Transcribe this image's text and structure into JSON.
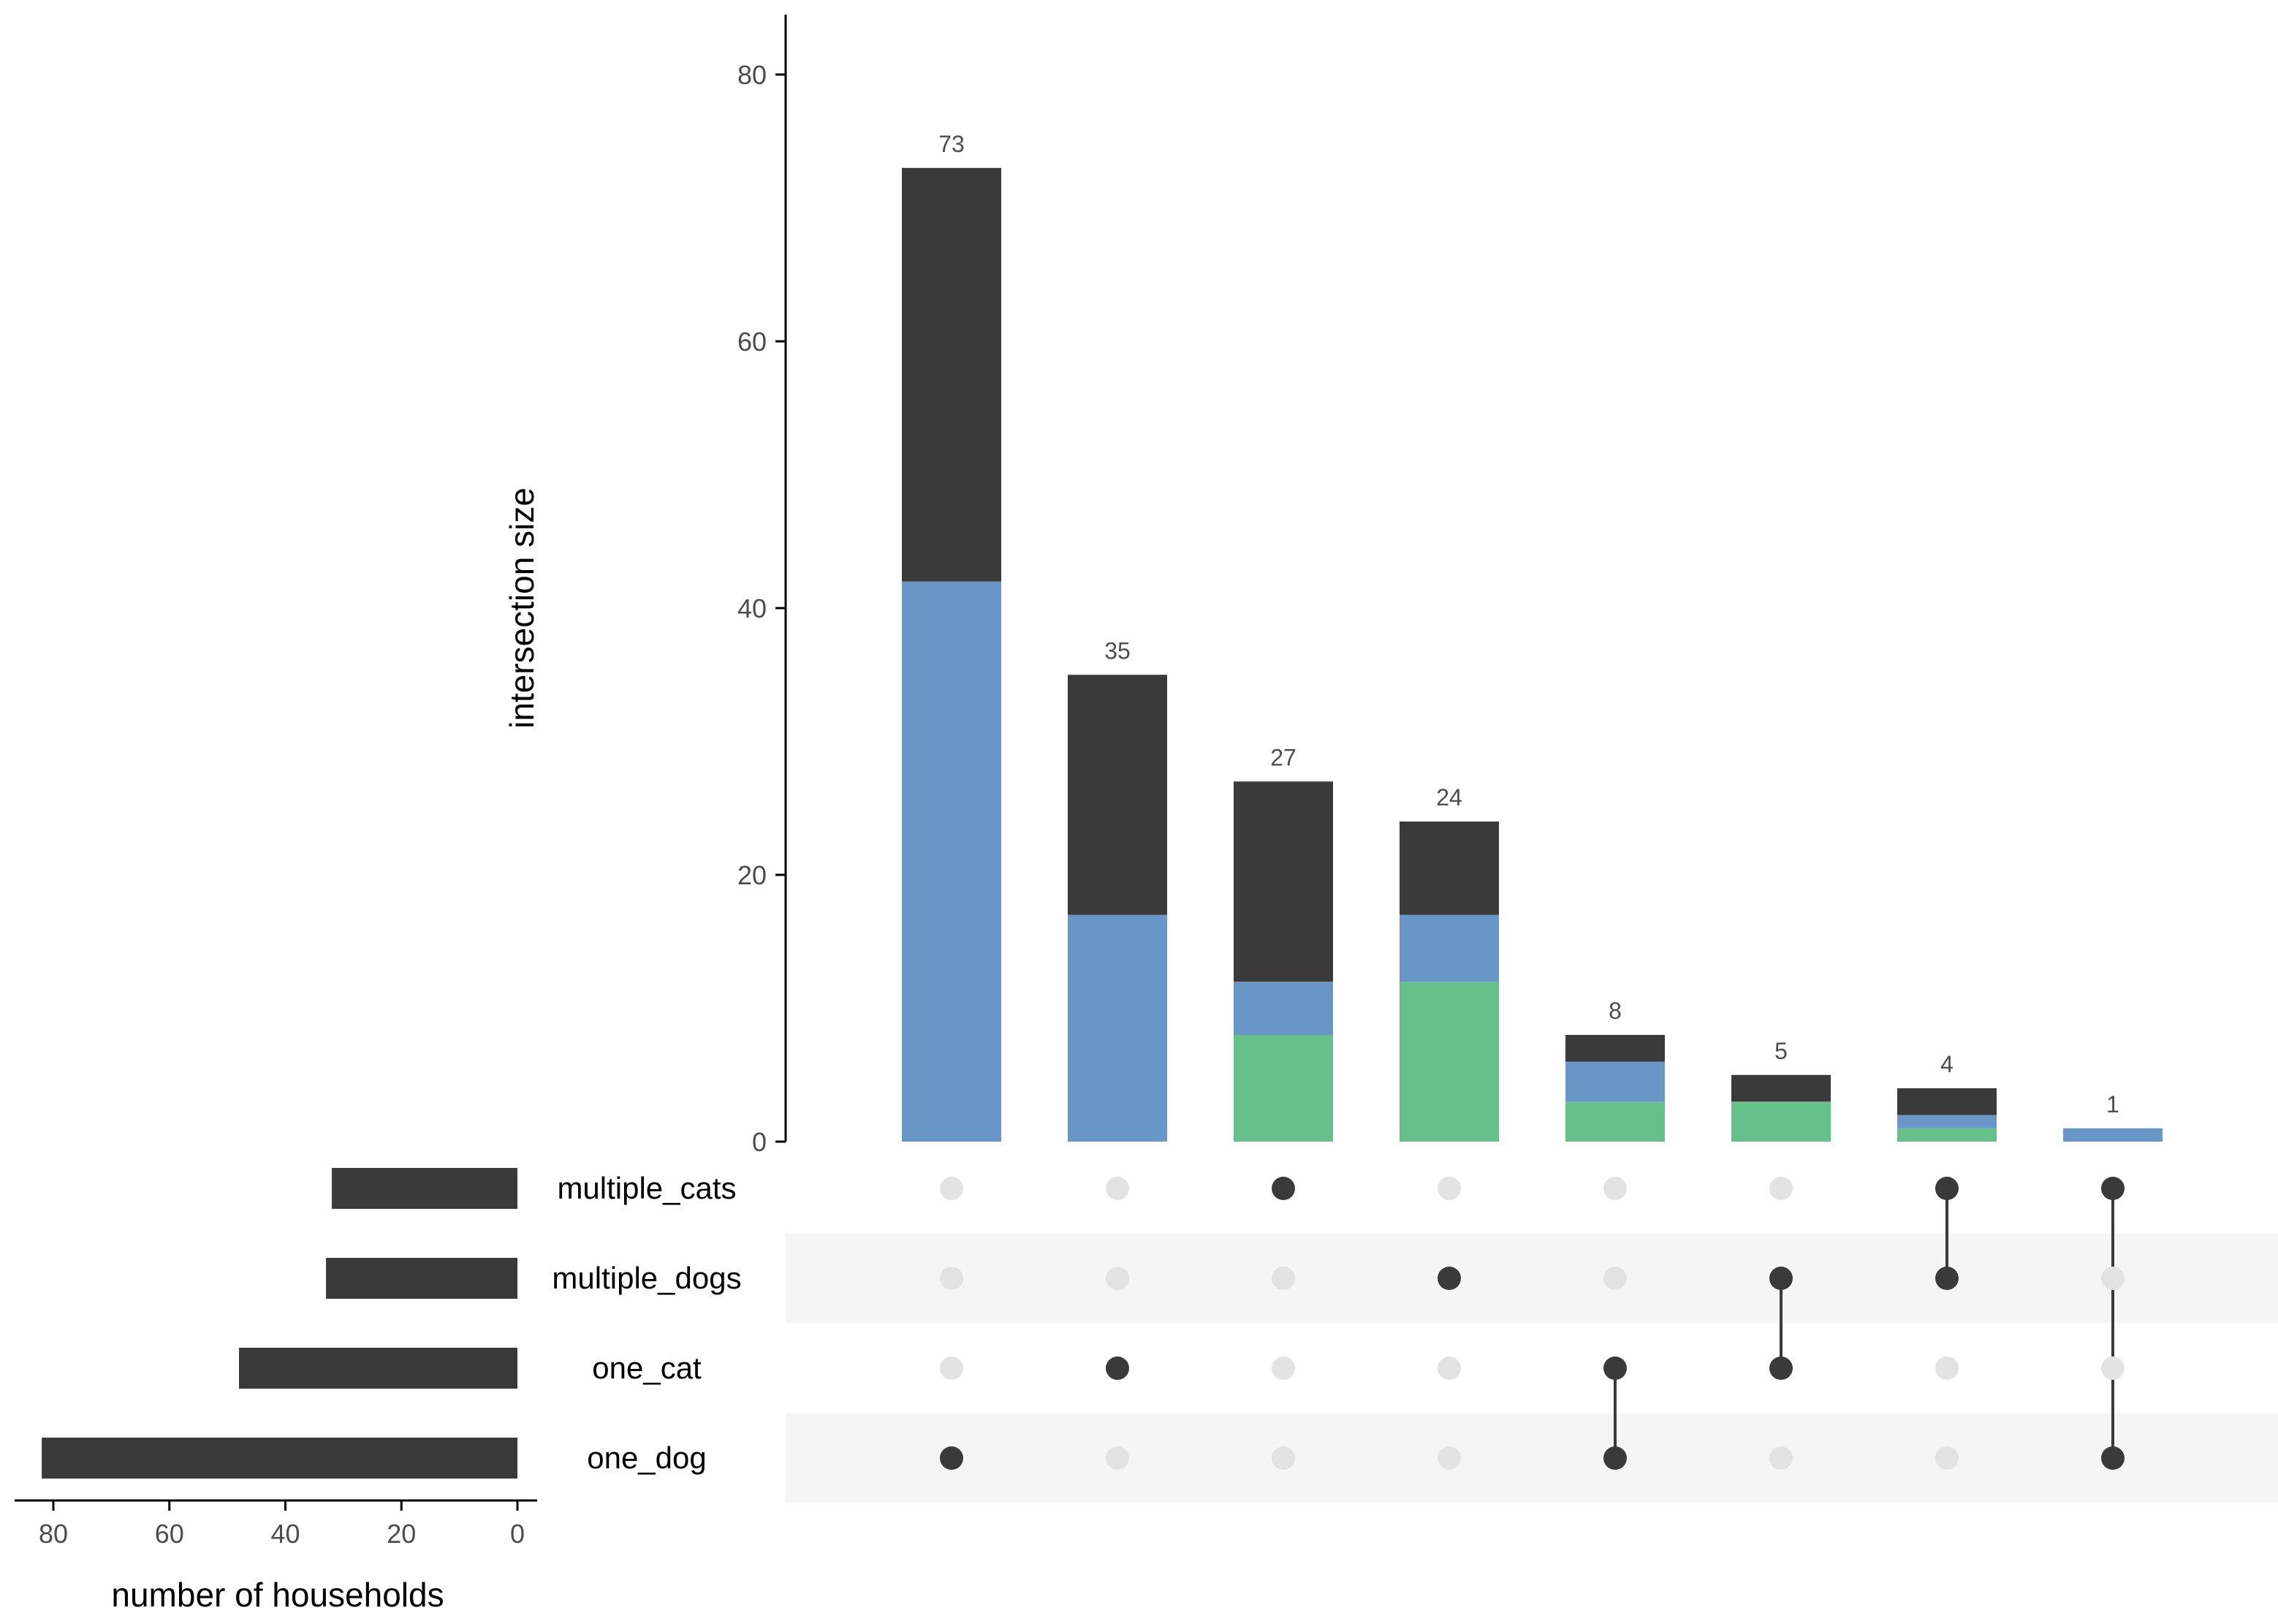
{
  "chart_data": {
    "type": "upset",
    "colors": {
      "dark": "#3a3a3a",
      "blue": "#6896c6",
      "green": "#66c08a",
      "dot_inactive": "#e3e3e3",
      "row_shade": "#f5f5f5",
      "axis": "#000000"
    },
    "sets": [
      "multiple_cats",
      "multiple_dogs",
      "one_cat",
      "one_dog"
    ],
    "set_sizes": [
      32,
      33,
      48,
      82
    ],
    "set_size_axis": {
      "xlabel": "number of households",
      "ticks": [
        80,
        60,
        40,
        20,
        0
      ],
      "tick_labels": [
        "80",
        "60",
        "40",
        "20",
        "0"
      ],
      "xlim": [
        84,
        0
      ]
    },
    "intersection_axis": {
      "ylabel": "intersection size",
      "ticks": [
        0,
        20,
        40,
        60,
        80
      ],
      "tick_labels": [
        "0",
        "20",
        "40",
        "60",
        "80"
      ],
      "ylim": [
        0,
        84
      ]
    },
    "intersections": [
      {
        "sets": [
          "one_dog"
        ],
        "total": 73,
        "total_label": "73",
        "segments": {
          "green": 0,
          "blue": 42,
          "dark": 31
        }
      },
      {
        "sets": [
          "one_cat"
        ],
        "total": 35,
        "total_label": "35",
        "segments": {
          "green": 0,
          "blue": 17,
          "dark": 18
        }
      },
      {
        "sets": [
          "multiple_cats"
        ],
        "total": 27,
        "total_label": "27",
        "segments": {
          "green": 8,
          "blue": 4,
          "dark": 15
        }
      },
      {
        "sets": [
          "multiple_dogs"
        ],
        "total": 24,
        "total_label": "24",
        "segments": {
          "green": 12,
          "blue": 5,
          "dark": 7
        }
      },
      {
        "sets": [
          "one_cat",
          "one_dog"
        ],
        "total": 8,
        "total_label": "8",
        "segments": {
          "green": 3,
          "blue": 3,
          "dark": 2
        }
      },
      {
        "sets": [
          "multiple_dogs",
          "one_cat"
        ],
        "total": 5,
        "total_label": "5",
        "segments": {
          "green": 3,
          "blue": 0,
          "dark": 2
        }
      },
      {
        "sets": [
          "multiple_cats",
          "multiple_dogs"
        ],
        "total": 4,
        "total_label": "4",
        "segments": {
          "green": 1,
          "blue": 1,
          "dark": 2
        }
      },
      {
        "sets": [
          "multiple_cats",
          "one_dog"
        ],
        "total": 1,
        "total_label": "1",
        "segments": {
          "green": 0,
          "blue": 1,
          "dark": 0
        }
      }
    ]
  }
}
